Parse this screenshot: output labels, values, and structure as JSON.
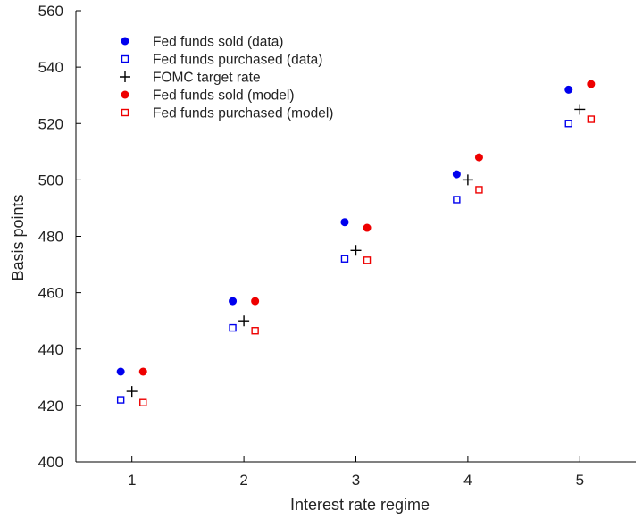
{
  "chart_data": {
    "type": "scatter",
    "xlabel": "Interest rate regime",
    "ylabel": "Basis points",
    "xticks": [
      "1",
      "2",
      "3",
      "4",
      "5"
    ],
    "yticks": [
      "400",
      "420",
      "440",
      "460",
      "480",
      "500",
      "520",
      "540",
      "560"
    ],
    "xlim": [
      0.5,
      5.5
    ],
    "ylim": [
      400,
      560
    ],
    "grid": false,
    "legend_position": "top-left",
    "series": [
      {
        "name": "Fed funds sold (data)",
        "marker": "filled-circle",
        "color": "#0000ee",
        "points": [
          [
            0.9,
            432
          ],
          [
            1.9,
            457
          ],
          [
            2.9,
            485
          ],
          [
            3.9,
            502
          ],
          [
            4.9,
            532
          ]
        ]
      },
      {
        "name": "Fed funds purchased (data)",
        "marker": "open-square",
        "color": "#0000ee",
        "points": [
          [
            0.9,
            422
          ],
          [
            1.9,
            447.5
          ],
          [
            2.9,
            472
          ],
          [
            3.9,
            493
          ],
          [
            4.9,
            520
          ]
        ]
      },
      {
        "name": "FOMC target rate",
        "marker": "plus",
        "color": "#000000",
        "points": [
          [
            1,
            425
          ],
          [
            2,
            450
          ],
          [
            3,
            475
          ],
          [
            4,
            500
          ],
          [
            5,
            525
          ]
        ]
      },
      {
        "name": "Fed funds sold (model)",
        "marker": "filled-circle",
        "color": "#ee0000",
        "points": [
          [
            1.1,
            432
          ],
          [
            2.1,
            457
          ],
          [
            3.1,
            483
          ],
          [
            4.1,
            508
          ],
          [
            5.1,
            534
          ]
        ]
      },
      {
        "name": "Fed funds purchased (model)",
        "marker": "open-square",
        "color": "#ee0000",
        "points": [
          [
            1.1,
            421
          ],
          [
            2.1,
            446.5
          ],
          [
            3.1,
            471.5
          ],
          [
            4.1,
            496.5
          ],
          [
            5.1,
            521.5
          ]
        ]
      }
    ]
  }
}
